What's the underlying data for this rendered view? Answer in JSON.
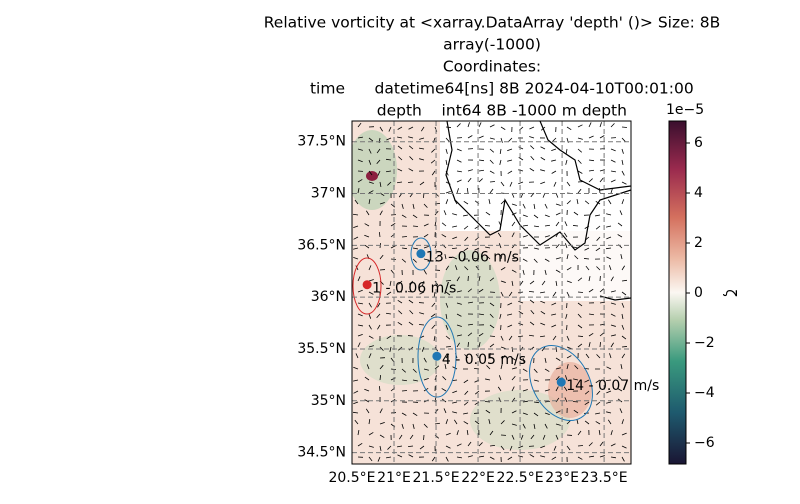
{
  "chart_data": {
    "type": "map",
    "title_lines": [
      "Relative vorticity at <xarray.DataArray 'depth' ()> Size: 8B",
      "array(-1000)",
      "Coordinates:",
      "    time      datetime64[ns] 8B 2024-04-10T00:01:00",
      "    depth    int64 8B -1000 m depth"
    ],
    "xlim": [
      20.5,
      23.82
    ],
    "ylim": [
      34.39,
      37.7
    ],
    "xticks": [
      {
        "value": 20.5,
        "label": "20.5°E"
      },
      {
        "value": 21,
        "label": "21°E"
      },
      {
        "value": 21.5,
        "label": "21.5°E"
      },
      {
        "value": 22,
        "label": "22°E"
      },
      {
        "value": 22.5,
        "label": "22.5°E"
      },
      {
        "value": 23,
        "label": "23°E"
      },
      {
        "value": 23.5,
        "label": "23.5°E"
      }
    ],
    "yticks": [
      {
        "value": 34.5,
        "label": "34.5°N"
      },
      {
        "value": 35,
        "label": "35°N"
      },
      {
        "value": 35.5,
        "label": "35.5°N"
      },
      {
        "value": 36,
        "label": "36°N"
      },
      {
        "value": 36.5,
        "label": "36.5°N"
      },
      {
        "value": 37,
        "label": "37°N"
      },
      {
        "value": 37.5,
        "label": "37.5°N"
      }
    ],
    "grid": true,
    "points": [
      {
        "label": "1 - 0.06 m/s",
        "lon": 20.68,
        "lat": 36.12,
        "color": "#d62728"
      },
      {
        "label": "13 - 0.06 m/s",
        "lon": 21.32,
        "lat": 36.42,
        "color": "#1f77b4"
      },
      {
        "label": "4 - 0.05 m/s",
        "lon": 21.51,
        "lat": 35.43,
        "color": "#1f77b4"
      },
      {
        "label": "14 - 0.07 m/s",
        "lon": 22.99,
        "lat": 35.18,
        "color": "#1f77b4"
      }
    ],
    "colorbar": {
      "label": "ζ",
      "offset": "1e−5",
      "lim": [
        -6.84,
        6.88
      ],
      "ticks": [
        {
          "value": -6,
          "label": "−6"
        },
        {
          "value": -4,
          "label": "−4"
        },
        {
          "value": -2,
          "label": "−2"
        },
        0,
        2,
        4,
        6
      ]
    }
  }
}
